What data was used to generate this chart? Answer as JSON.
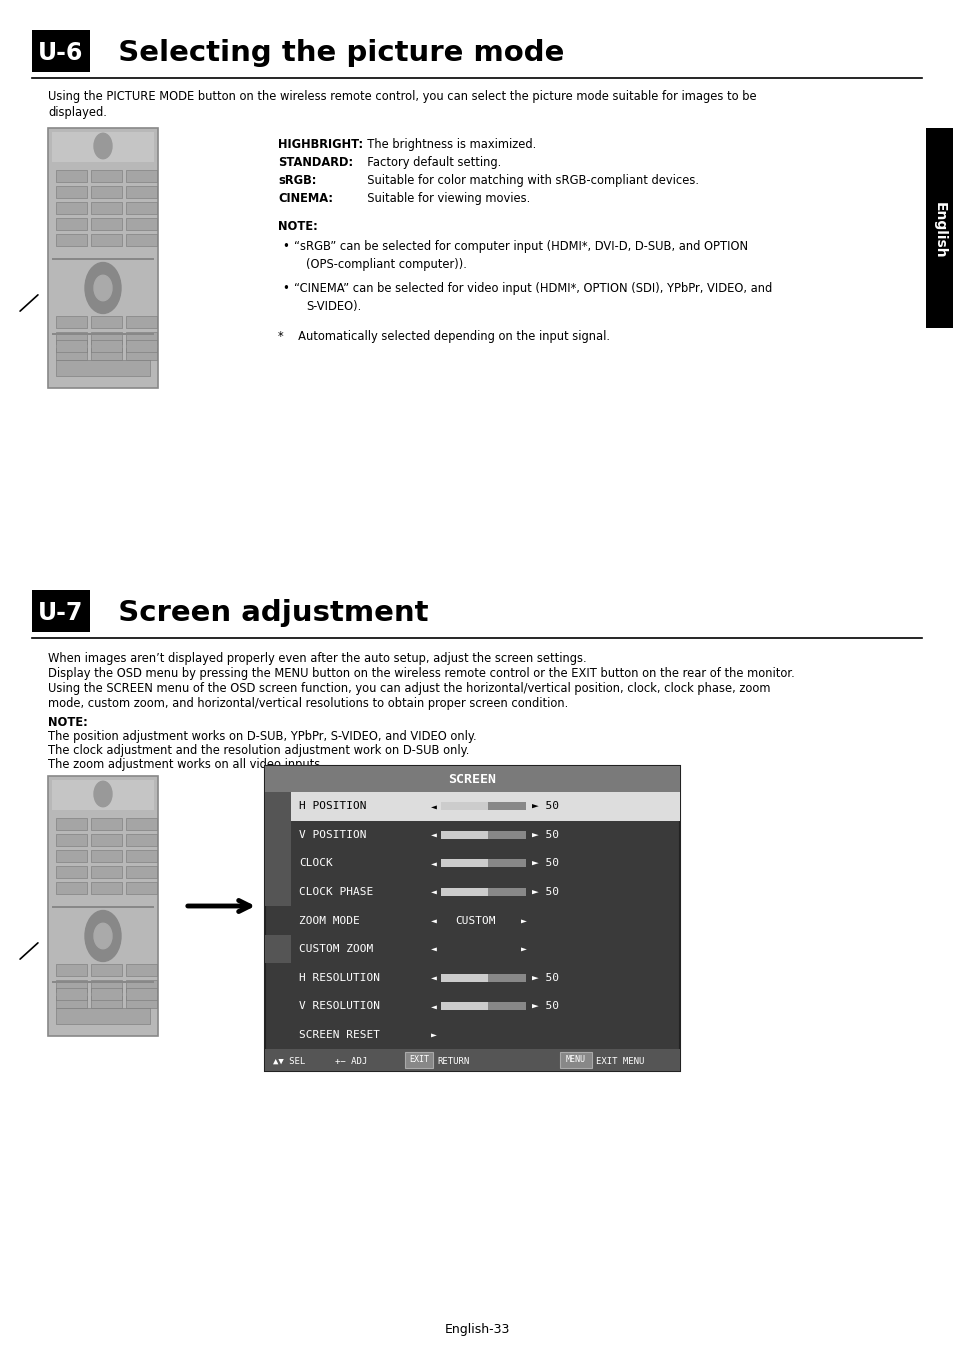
{
  "bg_color": "#ffffff",
  "section1_badge": "U-6",
  "section1_title": "  Selecting the picture mode",
  "section1_intro": "Using the PICTURE MODE button on the wireless remote control, you can select the picture mode suitable for images to be\ndisplayed.",
  "section1_modes": [
    [
      "HIGHBRIGHT:",
      "  The brightness is maximized."
    ],
    [
      "STANDARD:",
      "  Factory default setting."
    ],
    [
      "sRGB:",
      "  Suitable for color matching with sRGB-compliant devices."
    ],
    [
      "CINEMA:",
      "  Suitable for viewing movies."
    ]
  ],
  "section1_note_title": "NOTE:",
  "section1_bullets": [
    "“sRGB” can be selected for computer input (HDMI*, DVI-D, D-SUB, and OPTION\n    (OPS-compliant computer)).",
    "“CINEMA” can be selected for video input (HDMI*, OPTION (SDI), YPbPr, VIDEO, and\n    S-VIDEO)."
  ],
  "section1_footnote": "*    Automatically selected depending on the input signal.",
  "section2_badge": "U-7",
  "section2_title": "  Screen adjustment",
  "section2_intro1": "When images aren’t displayed properly even after the auto setup, adjust the screen settings.",
  "section2_intro2": "Display the OSD menu by pressing the MENU button on the wireless remote control or the EXIT button on the rear of the monitor.",
  "section2_intro3": "Using the SCREEN menu of the OSD screen function, you can adjust the horizontal/vertical position, clock, clock phase, zoom\nmode, custom zoom, and horizontal/vertical resolutions to obtain proper screen condition.",
  "section2_note_title": "NOTE:",
  "section2_note_lines": [
    "The position adjustment works on D-SUB, YPbPr, S-VIDEO, and VIDEO only.",
    "The clock adjustment and the resolution adjustment work on D-SUB only.",
    "The zoom adjustment works on all video inputs."
  ],
  "osd_title": "SCREEN",
  "osd_items": [
    "H POSITION",
    "V POSITION",
    "CLOCK",
    "CLOCK PHASE",
    "ZOOM MODE",
    "CUSTOM ZOOM",
    "H RESOLUTION",
    "V RESOLUTION",
    "SCREEN RESET"
  ],
  "osd_values": [
    "50",
    "50",
    "50",
    "50",
    "",
    "",
    "50",
    "50",
    ""
  ],
  "osd_zoom_value": "CUSTOM",
  "page_number": "English-33",
  "sidebar_text": "English"
}
